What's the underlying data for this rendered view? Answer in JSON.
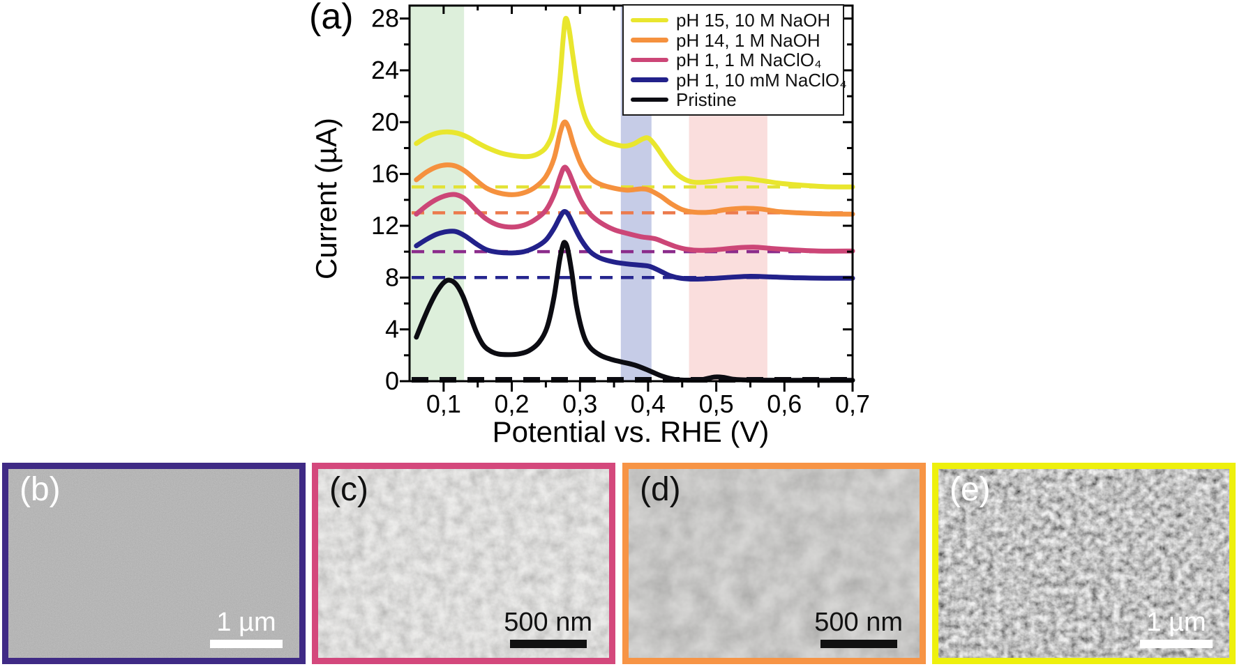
{
  "chart_data": {
    "type": "line",
    "panel_label": "(a)",
    "xlabel": "Potential vs. RHE (V)",
    "ylabel": "Current (µA)",
    "x_domain": [
      0.05,
      0.7
    ],
    "y_domain": [
      0,
      29
    ],
    "x_tick_values": [
      0.1,
      0.2,
      0.3,
      0.4,
      0.5,
      0.6,
      0.7
    ],
    "x_tick_labels": [
      "0,1",
      "0,2",
      "0,3",
      "0,4",
      "0,5",
      "0,6",
      "0,7"
    ],
    "y_tick_values": [
      0,
      4,
      8,
      12,
      16,
      20,
      24,
      28
    ],
    "x_minor_step": 0.05,
    "y_minor_step": 2,
    "grid": false,
    "legend_position": "top-right",
    "highlight_bands": [
      {
        "name": "band-green",
        "x0": 0.05,
        "x1": 0.13,
        "color": "#ddefdb"
      },
      {
        "name": "band-lavender",
        "x0": 0.36,
        "x1": 0.405,
        "color": "#c6cce7"
      },
      {
        "name": "band-pink",
        "x0": 0.46,
        "x1": 0.575,
        "color": "#fadedd"
      }
    ],
    "series": [
      {
        "name": "pH 15, 10 M NaOH",
        "color": "#e9e62e",
        "baseline": 15,
        "dash_color": "#e2e236",
        "points": [
          [
            0.06,
            18.35
          ],
          [
            0.075,
            18.85
          ],
          [
            0.09,
            19.15
          ],
          [
            0.105,
            19.25
          ],
          [
            0.12,
            19.15
          ],
          [
            0.135,
            18.85
          ],
          [
            0.15,
            18.4
          ],
          [
            0.165,
            18.0
          ],
          [
            0.185,
            17.6
          ],
          [
            0.205,
            17.4
          ],
          [
            0.225,
            17.35
          ],
          [
            0.24,
            17.6
          ],
          [
            0.252,
            18.2
          ],
          [
            0.262,
            19.6
          ],
          [
            0.27,
            23.0
          ],
          [
            0.2755,
            26.5
          ],
          [
            0.279,
            28.0
          ],
          [
            0.284,
            27.2
          ],
          [
            0.29,
            25.0
          ],
          [
            0.298,
            22.3
          ],
          [
            0.308,
            20.3
          ],
          [
            0.32,
            19.2
          ],
          [
            0.335,
            18.6
          ],
          [
            0.35,
            18.3
          ],
          [
            0.365,
            18.15
          ],
          [
            0.378,
            18.3
          ],
          [
            0.392,
            18.7
          ],
          [
            0.401,
            18.75
          ],
          [
            0.412,
            18.1
          ],
          [
            0.425,
            17.1
          ],
          [
            0.44,
            16.1
          ],
          [
            0.455,
            15.55
          ],
          [
            0.47,
            15.35
          ],
          [
            0.49,
            15.4
          ],
          [
            0.515,
            15.55
          ],
          [
            0.54,
            15.65
          ],
          [
            0.565,
            15.5
          ],
          [
            0.59,
            15.3
          ],
          [
            0.62,
            15.15
          ],
          [
            0.66,
            15.02
          ],
          [
            0.7,
            15.0
          ]
        ]
      },
      {
        "name": "pH 14, 1 M NaOH",
        "color": "#f5913e",
        "baseline": 13,
        "dash_color": "#ec7a4c",
        "points": [
          [
            0.06,
            15.55
          ],
          [
            0.075,
            16.15
          ],
          [
            0.09,
            16.55
          ],
          [
            0.105,
            16.7
          ],
          [
            0.118,
            16.6
          ],
          [
            0.132,
            16.2
          ],
          [
            0.148,
            15.5
          ],
          [
            0.163,
            14.9
          ],
          [
            0.18,
            14.55
          ],
          [
            0.2,
            14.4
          ],
          [
            0.218,
            14.55
          ],
          [
            0.235,
            15.0
          ],
          [
            0.25,
            15.8
          ],
          [
            0.262,
            17.2
          ],
          [
            0.271,
            19.2
          ],
          [
            0.277,
            20.0
          ],
          [
            0.283,
            19.6
          ],
          [
            0.291,
            18.2
          ],
          [
            0.302,
            16.7
          ],
          [
            0.315,
            15.7
          ],
          [
            0.33,
            15.2
          ],
          [
            0.35,
            14.9
          ],
          [
            0.37,
            14.75
          ],
          [
            0.39,
            14.85
          ],
          [
            0.402,
            14.75
          ],
          [
            0.418,
            14.3
          ],
          [
            0.434,
            13.7
          ],
          [
            0.45,
            13.25
          ],
          [
            0.468,
            13.05
          ],
          [
            0.49,
            13.05
          ],
          [
            0.515,
            13.25
          ],
          [
            0.54,
            13.35
          ],
          [
            0.565,
            13.3
          ],
          [
            0.59,
            13.1
          ],
          [
            0.62,
            13.0
          ],
          [
            0.66,
            12.92
          ],
          [
            0.7,
            12.9
          ]
        ]
      },
      {
        "name": "pH 1, 1 M NaClO₄",
        "color": "#cc4677",
        "baseline": 10,
        "dash_color": "#8b2c8b",
        "points": [
          [
            0.06,
            12.9
          ],
          [
            0.075,
            13.55
          ],
          [
            0.09,
            14.05
          ],
          [
            0.105,
            14.35
          ],
          [
            0.118,
            14.4
          ],
          [
            0.132,
            14.05
          ],
          [
            0.148,
            13.2
          ],
          [
            0.163,
            12.5
          ],
          [
            0.18,
            12.05
          ],
          [
            0.2,
            11.9
          ],
          [
            0.218,
            12.05
          ],
          [
            0.235,
            12.5
          ],
          [
            0.25,
            13.2
          ],
          [
            0.262,
            14.4
          ],
          [
            0.271,
            15.8
          ],
          [
            0.277,
            16.5
          ],
          [
            0.283,
            16.2
          ],
          [
            0.291,
            15.2
          ],
          [
            0.302,
            13.9
          ],
          [
            0.315,
            12.9
          ],
          [
            0.33,
            12.25
          ],
          [
            0.35,
            11.7
          ],
          [
            0.37,
            11.4
          ],
          [
            0.39,
            11.15
          ],
          [
            0.41,
            11.0
          ],
          [
            0.425,
            10.7
          ],
          [
            0.44,
            10.4
          ],
          [
            0.455,
            10.2
          ],
          [
            0.475,
            10.1
          ],
          [
            0.5,
            10.15
          ],
          [
            0.53,
            10.3
          ],
          [
            0.555,
            10.35
          ],
          [
            0.58,
            10.25
          ],
          [
            0.61,
            10.15
          ],
          [
            0.65,
            10.05
          ],
          [
            0.7,
            10.05
          ]
        ]
      },
      {
        "name": "pH 1, 10 mM NaClO₄",
        "color": "#22218a",
        "baseline": 8,
        "dash_color": "#26268f",
        "points": [
          [
            0.06,
            10.45
          ],
          [
            0.075,
            10.95
          ],
          [
            0.09,
            11.35
          ],
          [
            0.105,
            11.55
          ],
          [
            0.118,
            11.55
          ],
          [
            0.132,
            11.2
          ],
          [
            0.148,
            10.6
          ],
          [
            0.163,
            10.15
          ],
          [
            0.18,
            9.95
          ],
          [
            0.2,
            9.9
          ],
          [
            0.218,
            10.0
          ],
          [
            0.235,
            10.35
          ],
          [
            0.25,
            10.9
          ],
          [
            0.262,
            11.8
          ],
          [
            0.271,
            12.7
          ],
          [
            0.277,
            13.1
          ],
          [
            0.283,
            12.85
          ],
          [
            0.291,
            12.0
          ],
          [
            0.302,
            10.9
          ],
          [
            0.315,
            10.0
          ],
          [
            0.33,
            9.5
          ],
          [
            0.35,
            9.2
          ],
          [
            0.37,
            9.05
          ],
          [
            0.39,
            8.95
          ],
          [
            0.403,
            8.85
          ],
          [
            0.418,
            8.5
          ],
          [
            0.432,
            8.15
          ],
          [
            0.448,
            7.95
          ],
          [
            0.468,
            7.88
          ],
          [
            0.49,
            7.92
          ],
          [
            0.52,
            8.02
          ],
          [
            0.55,
            8.1
          ],
          [
            0.58,
            8.05
          ],
          [
            0.62,
            7.98
          ],
          [
            0.66,
            7.95
          ],
          [
            0.7,
            7.95
          ]
        ]
      },
      {
        "name": "Pristine",
        "color": "#0c0c12",
        "baseline": 0,
        "dash_color": "#0c0c12",
        "points": [
          [
            0.06,
            3.4
          ],
          [
            0.07,
            4.7
          ],
          [
            0.08,
            5.9
          ],
          [
            0.09,
            6.9
          ],
          [
            0.1,
            7.6
          ],
          [
            0.108,
            7.8
          ],
          [
            0.118,
            7.5
          ],
          [
            0.128,
            6.6
          ],
          [
            0.138,
            5.2
          ],
          [
            0.148,
            3.8
          ],
          [
            0.158,
            2.8
          ],
          [
            0.168,
            2.35
          ],
          [
            0.18,
            2.1
          ],
          [
            0.195,
            2.05
          ],
          [
            0.21,
            2.1
          ],
          [
            0.225,
            2.35
          ],
          [
            0.24,
            3.0
          ],
          [
            0.252,
            4.2
          ],
          [
            0.262,
            6.5
          ],
          [
            0.27,
            9.3
          ],
          [
            0.275,
            10.5
          ],
          [
            0.278,
            10.7
          ],
          [
            0.282,
            10.2
          ],
          [
            0.288,
            8.4
          ],
          [
            0.295,
            5.8
          ],
          [
            0.305,
            3.6
          ],
          [
            0.315,
            2.6
          ],
          [
            0.33,
            2.0
          ],
          [
            0.345,
            1.7
          ],
          [
            0.36,
            1.5
          ],
          [
            0.38,
            1.25
          ],
          [
            0.4,
            0.85
          ],
          [
            0.42,
            0.4
          ],
          [
            0.44,
            0.13
          ],
          [
            0.46,
            0.08
          ],
          [
            0.48,
            0.13
          ],
          [
            0.497,
            0.32
          ],
          [
            0.51,
            0.3
          ],
          [
            0.525,
            0.15
          ],
          [
            0.55,
            0.09
          ],
          [
            0.6,
            0.07
          ],
          [
            0.65,
            0.07
          ],
          [
            0.7,
            0.07
          ]
        ]
      }
    ]
  },
  "sem_panels": [
    {
      "label": "(b)",
      "border_color": "#3f2a85",
      "scale_text": "1 µm",
      "label_color": "#ffffff",
      "scalebar_color": "#ffffff"
    },
    {
      "label": "(c)",
      "border_color": "#d4487c",
      "scale_text": "500 nm",
      "label_color": "#111111",
      "scalebar_color": "#111111"
    },
    {
      "label": "(d)",
      "border_color": "#f79445",
      "scale_text": "500 nm",
      "label_color": "#111111",
      "scalebar_color": "#111111"
    },
    {
      "label": "(e)",
      "border_color": "#eef00c",
      "scale_text": "1 µm",
      "label_color": "#ffffff",
      "scalebar_color": "#ffffff"
    }
  ]
}
